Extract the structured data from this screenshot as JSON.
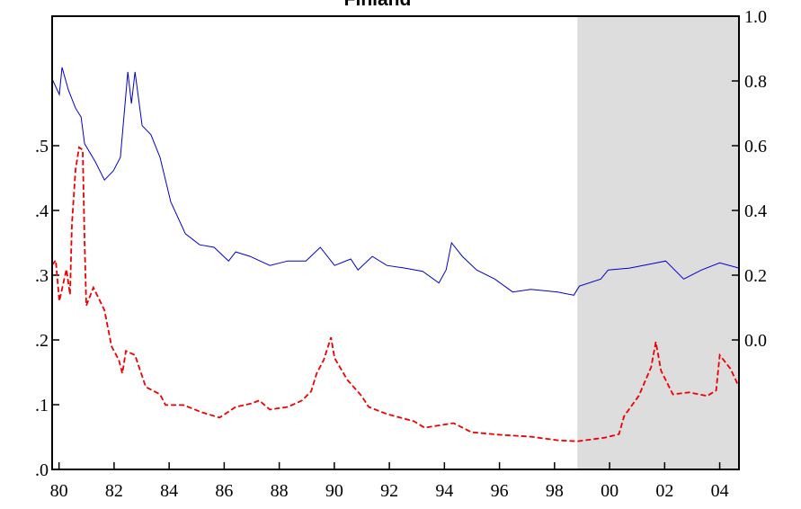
{
  "chart_data": {
    "type": "line",
    "title": "Finland",
    "x_series_note_free": null,
    "xlim": [
      1979.75,
      2004.7
    ],
    "xticks": [
      {
        "value": 1980,
        "label": "80"
      },
      {
        "value": 1982,
        "label": "82"
      },
      {
        "value": 1984,
        "label": "84"
      },
      {
        "value": 1986,
        "label": "86"
      },
      {
        "value": 1988,
        "label": "88"
      },
      {
        "value": 1990,
        "label": "90"
      },
      {
        "value": 1992,
        "label": "92"
      },
      {
        "value": 1994,
        "label": "94"
      },
      {
        "value": 1996,
        "label": "96"
      },
      {
        "value": 1998,
        "label": "98"
      },
      {
        "value": 2000,
        "label": "00"
      },
      {
        "value": 2002,
        "label": "02"
      },
      {
        "value": 2004,
        "label": "04"
      }
    ],
    "ylim": [
      0,
      0.7
    ],
    "yticks": [
      {
        "value": 0,
        "label": ".0"
      },
      {
        "value": 0.1,
        "label": ".1"
      },
      {
        "value": 0.2,
        "label": ".2"
      },
      {
        "value": 0.3,
        "label": ".3"
      },
      {
        "value": 0.4,
        "label": ".4"
      },
      {
        "value": 0.5,
        "label": ".5"
      }
    ],
    "y2lim": [
      -0.4,
      1.0
    ],
    "y2ticks": [
      {
        "value": 0,
        "label": "0.0"
      },
      0.2,
      0.4,
      0.6,
      0.8,
      {
        "value": 1,
        "label": "1.0"
      }
    ],
    "shaded_range": [
      1998.83,
      2004.7
    ],
    "shade_color": "#dddddd",
    "series": [
      {
        "color": "#0000cc",
        "dash": false,
        "axis": "y",
        "x": [
          1979.75,
          1980.01,
          1980.11,
          1980.34,
          1980.6,
          1980.8,
          1980.93,
          1981.32,
          1981.65,
          1981.97,
          1982.23,
          1982.5,
          1982.63,
          1982.76,
          1983.02,
          1983.34,
          1983.67,
          1984.06,
          1984.59,
          1985.11,
          1985.63,
          1986.16,
          1986.42,
          1986.94,
          1987.66,
          1988.31,
          1988.97,
          1989.49,
          1990.01,
          1990.6,
          1990.86,
          1991.38,
          1991.91,
          1992.56,
          1993.21,
          1993.8,
          1994.06,
          1994.26,
          1994.65,
          1995.17,
          1995.83,
          1996.48,
          1997.14,
          1998.12,
          1998.7,
          1998.9,
          1999.68,
          1999.95,
          2000.73,
          2001.71,
          2002.04,
          2002.69,
          2003.34,
          2004.0,
          2004.7
        ],
        "values": [
          0.603,
          0.579,
          0.621,
          0.586,
          0.558,
          0.544,
          0.503,
          0.475,
          0.447,
          0.461,
          0.482,
          0.614,
          0.565,
          0.614,
          0.531,
          0.517,
          0.482,
          0.413,
          0.364,
          0.347,
          0.343,
          0.322,
          0.336,
          0.329,
          0.315,
          0.322,
          0.322,
          0.343,
          0.315,
          0.325,
          0.308,
          0.329,
          0.315,
          0.311,
          0.306,
          0.288,
          0.308,
          0.35,
          0.329,
          0.308,
          0.294,
          0.274,
          0.278,
          0.274,
          0.269,
          0.283,
          0.294,
          0.308,
          0.311,
          0.319,
          0.322,
          0.294,
          0.308,
          0.319,
          0.311
        ]
      },
      {
        "color": "#ee0000",
        "dash": true,
        "axis": "y2",
        "x": [
          1979.75,
          1979.88,
          1980.01,
          1980.27,
          1980.4,
          1980.47,
          1980.6,
          1980.73,
          1980.86,
          1980.93,
          1980.99,
          1981.25,
          1981.65,
          1981.91,
          1982.17,
          1982.3,
          1982.43,
          1982.76,
          1983.15,
          1983.67,
          1983.87,
          1984.52,
          1985.17,
          1985.83,
          1986.42,
          1987.0,
          1987.27,
          1987.66,
          1988.31,
          1988.83,
          1989.16,
          1989.36,
          1989.62,
          1989.88,
          1990.01,
          1990.47,
          1990.99,
          1991.25,
          1991.91,
          1992.89,
          1993.28,
          1994.33,
          1994.98,
          1996.02,
          1997.14,
          1998.12,
          1998.83,
          1999.82,
          2000.34,
          2000.53,
          2001.06,
          2001.51,
          2001.68,
          2001.87,
          2002.3,
          2002.89,
          2003.54,
          2003.87,
          2004.0,
          2004.39,
          2004.7
        ],
        "values": [
          0.232,
          0.246,
          0.12,
          0.218,
          0.14,
          0.358,
          0.525,
          0.595,
          0.587,
          0.302,
          0.106,
          0.162,
          0.092,
          -0.02,
          -0.061,
          -0.103,
          -0.034,
          -0.047,
          -0.145,
          -0.168,
          -0.201,
          -0.201,
          -0.223,
          -0.24,
          -0.207,
          -0.196,
          -0.187,
          -0.215,
          -0.207,
          -0.187,
          -0.159,
          -0.103,
          -0.061,
          0.008,
          -0.056,
          -0.123,
          -0.173,
          -0.207,
          -0.229,
          -0.251,
          -0.271,
          -0.257,
          -0.285,
          -0.293,
          -0.299,
          -0.31,
          -0.313,
          -0.302,
          -0.291,
          -0.235,
          -0.173,
          -0.084,
          -0.006,
          -0.095,
          -0.168,
          -0.162,
          -0.173,
          -0.156,
          -0.047,
          -0.089,
          -0.145
        ]
      }
    ]
  }
}
